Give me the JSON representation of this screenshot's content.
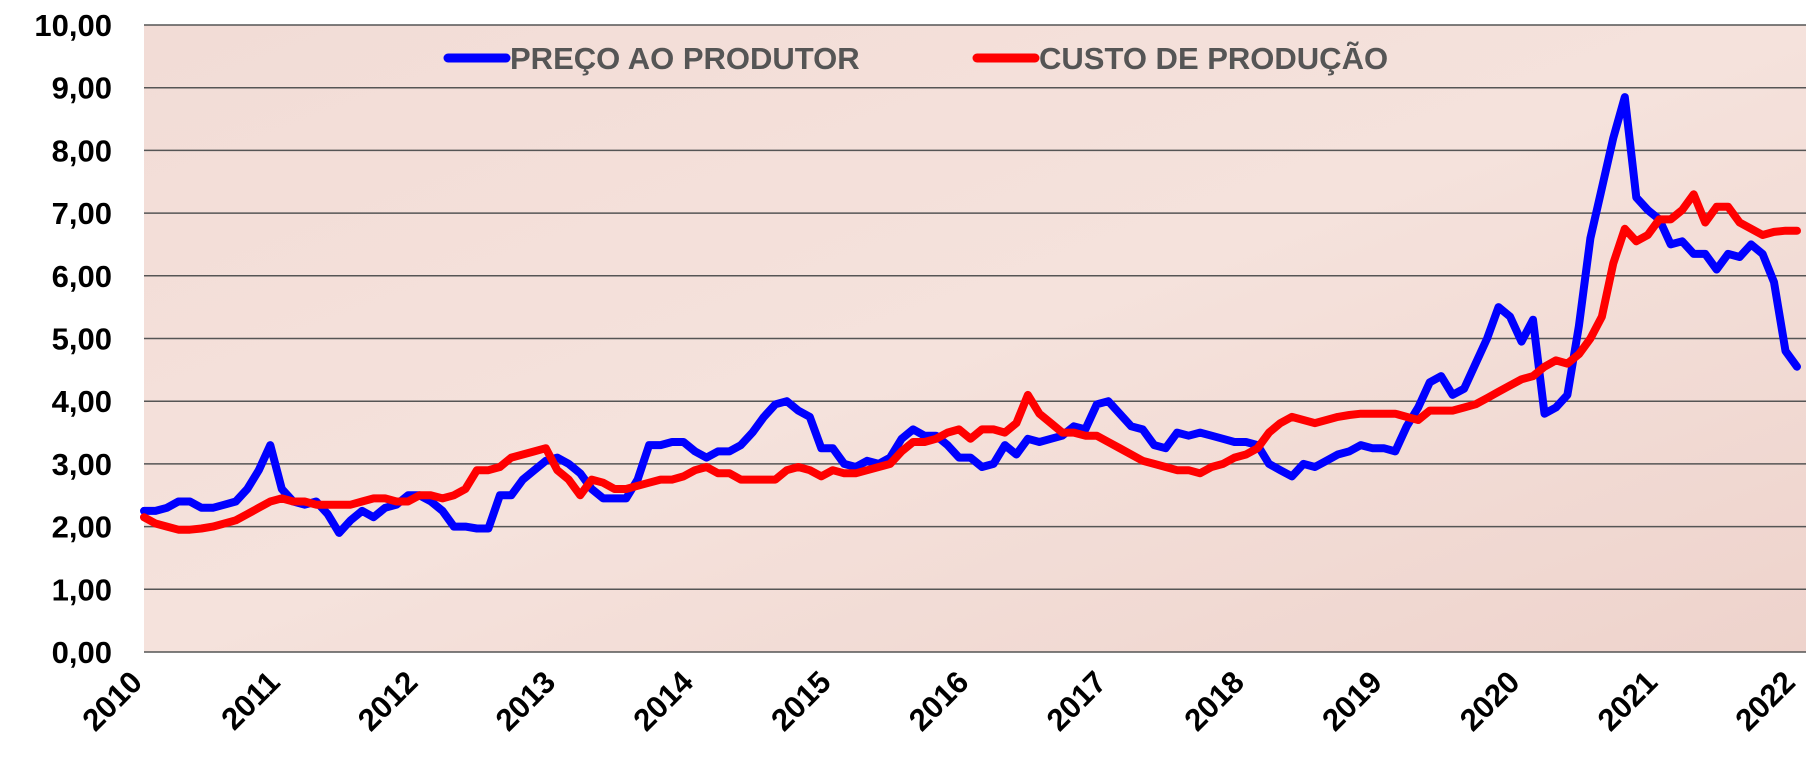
{
  "chart_data": {
    "type": "line",
    "categories": [
      "2010",
      null,
      null,
      null,
      null,
      null,
      null,
      null,
      null,
      null,
      null,
      null,
      "2011",
      null,
      null,
      null,
      null,
      null,
      null,
      null,
      null,
      null,
      null,
      null,
      "2012",
      null,
      null,
      null,
      null,
      null,
      null,
      null,
      null,
      null,
      null,
      null,
      "2013",
      null,
      null,
      null,
      null,
      null,
      null,
      null,
      null,
      null,
      null,
      null,
      "2014",
      null,
      null,
      null,
      null,
      null,
      null,
      null,
      null,
      null,
      null,
      null,
      "2015",
      null,
      null,
      null,
      null,
      null,
      null,
      null,
      null,
      null,
      null,
      null,
      "2016",
      null,
      null,
      null,
      null,
      null,
      null,
      null,
      null,
      null,
      null,
      null,
      "2017",
      null,
      null,
      null,
      null,
      null,
      null,
      null,
      null,
      null,
      null,
      null,
      "2018",
      null,
      null,
      null,
      null,
      null,
      null,
      null,
      null,
      null,
      null,
      null,
      "2019",
      null,
      null,
      null,
      null,
      null,
      null,
      null,
      null,
      null,
      null,
      null,
      "2020",
      null,
      null,
      null,
      null,
      null,
      null,
      null,
      null,
      null,
      null,
      null,
      "2021",
      null,
      null,
      null,
      null,
      null,
      null,
      null,
      null,
      null,
      null,
      null,
      "2022"
    ],
    "series": [
      {
        "name": "PREÇO AO PRODUTOR",
        "color": "#0000ff",
        "values": [
          2.25,
          2.25,
          2.3,
          2.4,
          2.4,
          2.3,
          2.3,
          2.35,
          2.4,
          2.6,
          2.9,
          3.3,
          2.6,
          2.4,
          2.35,
          2.4,
          2.2,
          1.9,
          2.1,
          2.25,
          2.15,
          2.3,
          2.35,
          2.5,
          2.5,
          2.4,
          2.25,
          2.0,
          2.0,
          1.97,
          1.97,
          2.5,
          2.5,
          2.75,
          2.9,
          3.05,
          3.1,
          3.0,
          2.85,
          2.6,
          2.45,
          2.45,
          2.45,
          2.75,
          3.3,
          3.3,
          3.35,
          3.35,
          3.2,
          3.1,
          3.2,
          3.2,
          3.3,
          3.5,
          3.75,
          3.95,
          4.0,
          3.85,
          3.75,
          3.25,
          3.25,
          3.0,
          2.95,
          3.05,
          3.0,
          3.1,
          3.4,
          3.55,
          3.45,
          3.45,
          3.3,
          3.1,
          3.1,
          2.95,
          3.0,
          3.3,
          3.15,
          3.4,
          3.35,
          3.4,
          3.45,
          3.6,
          3.55,
          3.95,
          4.0,
          3.8,
          3.6,
          3.55,
          3.3,
          3.25,
          3.5,
          3.45,
          3.5,
          3.45,
          3.4,
          3.35,
          3.35,
          3.3,
          3.0,
          2.9,
          2.8,
          3.0,
          2.95,
          3.05,
          3.15,
          3.2,
          3.3,
          3.25,
          3.25,
          3.2,
          3.6,
          3.9,
          4.3,
          4.4,
          4.1,
          4.2,
          4.6,
          5.0,
          5.5,
          5.35,
          4.95,
          5.3,
          3.8,
          3.9,
          4.1,
          5.2,
          6.6,
          7.4,
          8.2,
          8.85,
          7.25,
          7.05,
          6.9,
          6.5,
          6.55,
          6.35,
          6.35,
          6.1,
          6.35,
          6.3,
          6.5,
          6.35,
          5.9,
          4.8,
          4.55
        ]
      },
      {
        "name": "CUSTO DE PRODUÇÃO",
        "color": "#ff0000",
        "values": [
          2.15,
          2.05,
          2.0,
          1.95,
          1.95,
          1.97,
          2.0,
          2.05,
          2.1,
          2.2,
          2.3,
          2.4,
          2.45,
          2.4,
          2.4,
          2.35,
          2.35,
          2.35,
          2.35,
          2.4,
          2.45,
          2.45,
          2.4,
          2.4,
          2.5,
          2.5,
          2.45,
          2.5,
          2.6,
          2.9,
          2.9,
          2.95,
          3.1,
          3.15,
          3.2,
          3.25,
          2.9,
          2.75,
          2.5,
          2.75,
          2.7,
          2.6,
          2.6,
          2.65,
          2.7,
          2.75,
          2.75,
          2.8,
          2.9,
          2.95,
          2.85,
          2.85,
          2.75,
          2.75,
          2.75,
          2.75,
          2.9,
          2.95,
          2.9,
          2.8,
          2.9,
          2.85,
          2.85,
          2.9,
          2.95,
          3.0,
          3.2,
          3.35,
          3.35,
          3.4,
          3.5,
          3.55,
          3.4,
          3.55,
          3.55,
          3.5,
          3.65,
          4.1,
          3.8,
          3.65,
          3.5,
          3.5,
          3.45,
          3.45,
          3.35,
          3.25,
          3.15,
          3.05,
          3.0,
          2.95,
          2.9,
          2.9,
          2.85,
          2.95,
          3.0,
          3.1,
          3.15,
          3.25,
          3.5,
          3.65,
          3.75,
          3.7,
          3.65,
          3.7,
          3.75,
          3.78,
          3.8,
          3.8,
          3.8,
          3.8,
          3.75,
          3.7,
          3.85,
          3.85,
          3.85,
          3.9,
          3.95,
          4.05,
          4.15,
          4.25,
          4.35,
          4.4,
          4.55,
          4.65,
          4.6,
          4.75,
          5.0,
          5.35,
          6.2,
          6.75,
          6.55,
          6.65,
          6.9,
          6.9,
          7.05,
          7.3,
          6.85,
          7.1,
          7.1,
          6.85,
          6.75,
          6.65,
          6.7,
          6.72,
          6.72
        ]
      }
    ],
    "ylim": [
      0,
      10
    ],
    "yticks": [
      {
        "value": 0,
        "label": "0,00"
      },
      {
        "value": 1,
        "label": "1,00"
      },
      {
        "value": 2,
        "label": "2,00"
      },
      {
        "value": 3,
        "label": "3,00"
      },
      {
        "value": 4,
        "label": "4,00"
      },
      {
        "value": 5,
        "label": "5,00"
      },
      {
        "value": 6,
        "label": "6,00"
      },
      {
        "value": 7,
        "label": "7,00"
      },
      {
        "value": 8,
        "label": "8,00"
      },
      {
        "value": 9,
        "label": "9,00"
      },
      {
        "value": 10,
        "label": "10,00"
      }
    ],
    "grid": true,
    "legend": "top"
  }
}
